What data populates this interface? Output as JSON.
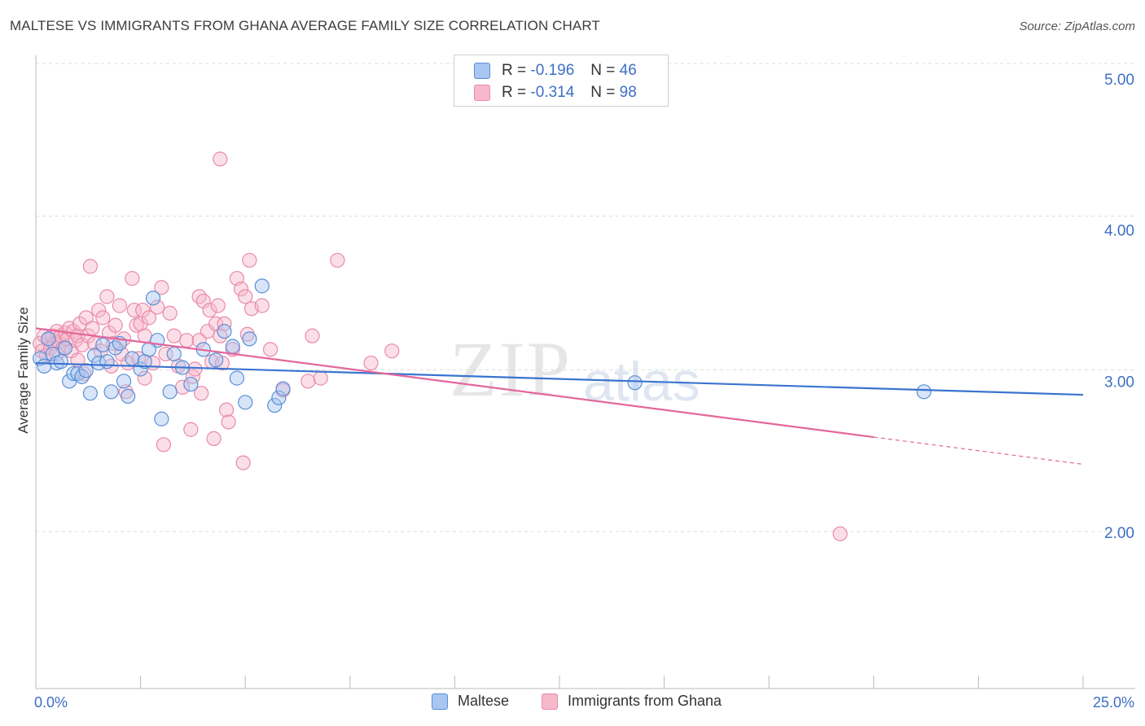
{
  "title": "MALTESE VS IMMIGRANTS FROM GHANA AVERAGE FAMILY SIZE CORRELATION CHART",
  "source": "Source: ZipAtlas.com",
  "watermark": {
    "zip": "ZIP",
    "atlas": "atlas"
  },
  "legend": {
    "rows": [
      {
        "r_label": "R = ",
        "r_value": "-0.196",
        "n_label": "N = ",
        "n_value": "46"
      },
      {
        "r_label": "R = ",
        "r_value": "-0.314",
        "n_label": "N = ",
        "n_value": "98"
      }
    ]
  },
  "colors": {
    "maltese_fill": "#a8c6f0",
    "maltese_stroke": "#5a8fd8",
    "maltese_line": "#3a74d0",
    "ghana_fill": "#f7b8cb",
    "ghana_stroke": "#e98aa8",
    "ghana_line": "#e4679a",
    "tick_text": "#3d6fc4"
  },
  "chart_data": {
    "type": "scatter",
    "title": "MALTESE VS IMMIGRANTS FROM GHANA AVERAGE FAMILY SIZE CORRELATION CHART",
    "xlabel": "",
    "ylabel": "Average Family Size",
    "xlim": [
      0,
      25
    ],
    "ylim": [
      1.0,
      5.1
    ],
    "x_tick_labels": [
      "0.0%",
      "25.0%"
    ],
    "y_ticks": [
      2.0,
      3.0,
      4.0,
      5.0
    ],
    "y_tick_labels": [
      "2.00",
      "3.00",
      "4.00",
      "5.00"
    ],
    "grid": "horizontal dashed",
    "legend_position": "top-center",
    "series": [
      {
        "name": "Maltese",
        "trend": {
          "x": [
            0,
            25
          ],
          "y": [
            3.12,
            2.91
          ]
        },
        "points": [
          [
            0.1,
            3.15
          ],
          [
            0.2,
            3.1
          ],
          [
            0.3,
            3.28
          ],
          [
            0.4,
            3.18
          ],
          [
            0.5,
            3.12
          ],
          [
            0.6,
            3.13
          ],
          [
            0.7,
            3.22
          ],
          [
            0.8,
            3.0
          ],
          [
            0.9,
            3.05
          ],
          [
            1.0,
            3.05
          ],
          [
            1.1,
            3.03
          ],
          [
            1.3,
            2.92
          ],
          [
            1.4,
            3.17
          ],
          [
            1.5,
            3.12
          ],
          [
            1.6,
            3.24
          ],
          [
            1.7,
            3.13
          ],
          [
            1.8,
            2.93
          ],
          [
            1.9,
            3.22
          ],
          [
            2.0,
            3.25
          ],
          [
            2.1,
            3.0
          ],
          [
            2.2,
            2.9
          ],
          [
            2.3,
            3.15
          ],
          [
            2.5,
            3.08
          ],
          [
            2.6,
            3.13
          ],
          [
            2.8,
            3.55
          ],
          [
            2.9,
            3.27
          ],
          [
            3.0,
            2.75
          ],
          [
            3.2,
            2.93
          ],
          [
            3.3,
            3.18
          ],
          [
            3.5,
            3.09
          ],
          [
            3.7,
            2.98
          ],
          [
            4.0,
            3.21
          ],
          [
            4.3,
            3.14
          ],
          [
            4.5,
            3.33
          ],
          [
            4.7,
            3.23
          ],
          [
            4.8,
            3.02
          ],
          [
            5.0,
            2.86
          ],
          [
            5.1,
            3.28
          ],
          [
            5.4,
            3.63
          ],
          [
            5.7,
            2.84
          ],
          [
            5.8,
            2.89
          ],
          [
            5.9,
            2.95
          ],
          [
            14.3,
            2.99
          ],
          [
            21.2,
            2.93
          ],
          [
            1.2,
            3.07
          ],
          [
            2.7,
            3.21
          ]
        ]
      },
      {
        "name": "Immigrants from Ghana",
        "trend": {
          "x": [
            0,
            20
          ],
          "y": [
            3.35,
            2.63
          ]
        },
        "trend_dashed": {
          "x": [
            20,
            25
          ],
          "y": [
            2.63,
            2.45
          ]
        },
        "points": [
          [
            0.1,
            3.25
          ],
          [
            0.15,
            3.2
          ],
          [
            0.2,
            3.3
          ],
          [
            0.25,
            3.17
          ],
          [
            0.3,
            3.28
          ],
          [
            0.35,
            3.22
          ],
          [
            0.4,
            3.3
          ],
          [
            0.45,
            3.25
          ],
          [
            0.5,
            3.33
          ],
          [
            0.55,
            3.26
          ],
          [
            0.6,
            3.3
          ],
          [
            0.65,
            3.22
          ],
          [
            0.7,
            3.32
          ],
          [
            0.75,
            3.28
          ],
          [
            0.8,
            3.35
          ],
          [
            0.85,
            3.2
          ],
          [
            0.9,
            3.33
          ],
          [
            0.95,
            3.27
          ],
          [
            1.0,
            3.3
          ],
          [
            1.05,
            3.38
          ],
          [
            1.1,
            3.24
          ],
          [
            1.15,
            3.05
          ],
          [
            1.2,
            3.42
          ],
          [
            1.25,
            3.3
          ],
          [
            1.3,
            3.76
          ],
          [
            1.35,
            3.35
          ],
          [
            1.4,
            3.25
          ],
          [
            1.5,
            3.47
          ],
          [
            1.55,
            3.2
          ],
          [
            1.6,
            3.42
          ],
          [
            1.7,
            3.56
          ],
          [
            1.75,
            3.32
          ],
          [
            1.8,
            3.1
          ],
          [
            1.85,
            3.25
          ],
          [
            1.9,
            3.37
          ],
          [
            2.0,
            3.5
          ],
          [
            2.05,
            3.18
          ],
          [
            2.1,
            3.28
          ],
          [
            2.15,
            2.93
          ],
          [
            2.2,
            3.12
          ],
          [
            2.3,
            3.68
          ],
          [
            2.35,
            3.47
          ],
          [
            2.4,
            3.37
          ],
          [
            2.45,
            3.15
          ],
          [
            2.5,
            3.38
          ],
          [
            2.55,
            3.47
          ],
          [
            2.6,
            3.3
          ],
          [
            2.7,
            3.42
          ],
          [
            2.8,
            3.12
          ],
          [
            2.9,
            3.49
          ],
          [
            3.0,
            3.62
          ],
          [
            3.05,
            2.58
          ],
          [
            3.1,
            3.18
          ],
          [
            3.2,
            3.45
          ],
          [
            3.3,
            3.3
          ],
          [
            3.4,
            3.1
          ],
          [
            3.5,
            2.96
          ],
          [
            3.6,
            3.27
          ],
          [
            3.7,
            2.68
          ],
          [
            3.75,
            3.03
          ],
          [
            3.8,
            3.08
          ],
          [
            3.9,
            3.56
          ],
          [
            3.95,
            2.92
          ],
          [
            4.0,
            3.53
          ],
          [
            4.1,
            3.33
          ],
          [
            4.15,
            3.47
          ],
          [
            4.2,
            3.13
          ],
          [
            4.25,
            2.62
          ],
          [
            4.3,
            3.38
          ],
          [
            4.35,
            3.5
          ],
          [
            4.4,
            3.3
          ],
          [
            4.45,
            3.12
          ],
          [
            4.5,
            3.38
          ],
          [
            4.55,
            2.81
          ],
          [
            4.6,
            2.73
          ],
          [
            4.7,
            3.21
          ],
          [
            4.8,
            3.68
          ],
          [
            4.9,
            3.61
          ],
          [
            4.95,
            2.46
          ],
          [
            5.0,
            3.56
          ],
          [
            5.05,
            3.31
          ],
          [
            5.1,
            3.8
          ],
          [
            5.15,
            3.48
          ],
          [
            5.4,
            3.5
          ],
          [
            5.6,
            3.21
          ],
          [
            5.9,
            2.94
          ],
          [
            6.5,
            3.0
          ],
          [
            6.6,
            3.3
          ],
          [
            6.8,
            3.02
          ],
          [
            7.2,
            3.8
          ],
          [
            8.0,
            3.12
          ],
          [
            8.5,
            3.2
          ],
          [
            19.2,
            1.99
          ],
          [
            4.4,
            4.47
          ],
          [
            3.9,
            3.27
          ],
          [
            2.6,
            3.02
          ],
          [
            1.0,
            3.14
          ],
          [
            0.5,
            3.18
          ]
        ]
      }
    ]
  },
  "bottom_legend": [
    {
      "label": "Maltese"
    },
    {
      "label": "Immigrants from Ghana"
    }
  ]
}
